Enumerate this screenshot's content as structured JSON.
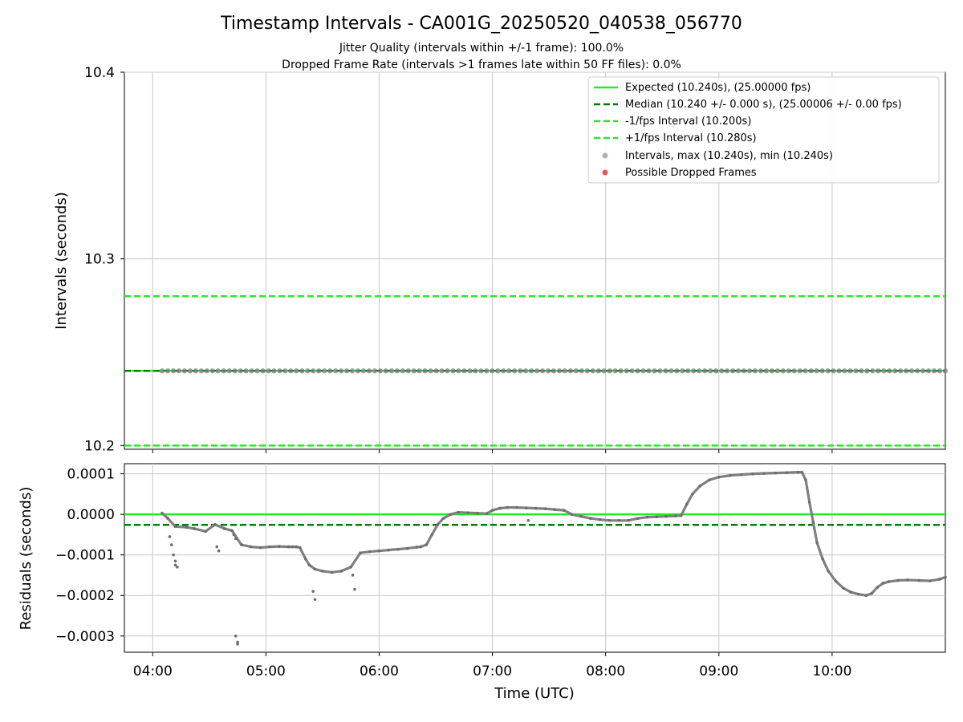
{
  "title": "Timestamp Intervals - CA001G_20250520_040538_056770",
  "subtitle_1": "Jitter Quality (intervals within +/-1 frame): 100.0%",
  "subtitle_2": "Dropped Frame Rate (intervals >1 frames late within 50 FF files): 0.0%",
  "colors": {
    "expected": "#22ee22",
    "median": "#007a00",
    "fps_bounds": "#22ee22",
    "intervals": "#808080",
    "dropped": "#ee5555",
    "grid": "#c8c8c8"
  },
  "chart_data": [
    {
      "type": "scatter",
      "ylabel": "Intervals (seconds)",
      "ylim": [
        10.198,
        10.4
      ],
      "yticks": [
        "10.2",
        "10.3",
        "10.4"
      ],
      "ytick_values": [
        10.2,
        10.3,
        10.4
      ],
      "xlim": [
        "03:45",
        "11:00"
      ],
      "grid": true,
      "legend_position": "top-right",
      "legend": [
        "Expected (10.240s), (25.00000 fps)",
        "Median (10.240 +/- 0.000 s), (25.00006 +/- 0.00 fps)",
        "-1/fps Interval (10.200s)",
        "+1/fps Interval (10.280s)",
        "Intervals, max (10.240s), min (10.240s)",
        "Possible Dropped Frames"
      ],
      "reference_lines": [
        {
          "name": "Expected",
          "y": 10.24,
          "style": "solid"
        },
        {
          "name": "Median",
          "y": 10.24,
          "style": "dashed"
        },
        {
          "name": "-1/fps Interval",
          "y": 10.2,
          "style": "dashed"
        },
        {
          "name": "+1/fps Interval",
          "y": 10.28,
          "style": "dashed"
        }
      ],
      "series": [
        {
          "name": "Intervals",
          "x": [
            "04:05",
            "11:00"
          ],
          "y": [
            10.24,
            10.24
          ]
        }
      ]
    },
    {
      "type": "scatter",
      "xlabel": "Time (UTC)",
      "ylabel": "Residuals (seconds)",
      "ylim": [
        -0.00034,
        0.000125
      ],
      "yticks": [
        "0.0001",
        "0.0000",
        "−0.0001",
        "−0.0002",
        "−0.0003"
      ],
      "ytick_values": [
        0.0001,
        0.0,
        -0.0001,
        -0.0002,
        -0.0003
      ],
      "xticks": [
        "04:00",
        "05:00",
        "06:00",
        "07:00",
        "08:00",
        "09:00",
        "10:00"
      ],
      "xlim": [
        "03:45",
        "11:00"
      ],
      "grid": true,
      "reference_lines": [
        {
          "name": "Expected",
          "y": 0.0,
          "style": "solid"
        },
        {
          "name": "Median",
          "y": -2.6e-05,
          "style": "dashed"
        }
      ],
      "series": [
        {
          "name": "Residuals",
          "x": [
            "04:05",
            "04:08",
            "04:12",
            "04:18",
            "04:22",
            "04:28",
            "04:33",
            "04:38",
            "04:42",
            "04:47",
            "04:52",
            "04:57",
            "05:02",
            "05:07",
            "05:12",
            "05:14",
            "05:16",
            "05:18",
            "05:21",
            "05:23",
            "05:26",
            "05:30",
            "05:35",
            "05:40",
            "05:45",
            "05:50",
            "05:55",
            "06:00",
            "06:05",
            "06:10",
            "06:15",
            "06:20",
            "06:22",
            "06:25",
            "06:28",
            "06:31",
            "06:34",
            "06:38",
            "06:42",
            "06:47",
            "06:52",
            "06:57",
            "07:00",
            "07:04",
            "07:08",
            "07:13",
            "07:18",
            "07:23",
            "07:28",
            "07:33",
            "07:38",
            "07:42",
            "07:47",
            "07:52",
            "07:57",
            "08:02",
            "08:07",
            "08:12",
            "08:17",
            "08:22",
            "08:27",
            "08:32",
            "08:37",
            "08:40",
            "08:43",
            "08:46",
            "08:50",
            "08:55",
            "09:00",
            "09:06",
            "09:12",
            "09:18",
            "09:24",
            "09:30",
            "09:36",
            "09:42",
            "09:44",
            "09:46",
            "09:48",
            "09:50",
            "09:52",
            "09:55",
            "09:58",
            "10:02",
            "10:06",
            "10:10",
            "10:14",
            "10:18",
            "10:21",
            "10:24",
            "10:27",
            "10:30",
            "10:35",
            "10:40",
            "10:46",
            "10:52",
            "10:57",
            "11:00"
          ],
          "y": [
            3e-06,
            -1e-05,
            -3e-05,
            -3.2e-05,
            -3.5e-05,
            -4.2e-05,
            -2.5e-05,
            -3.5e-05,
            -4e-05,
            -7.5e-05,
            -8e-05,
            -8.2e-05,
            -8e-05,
            -7.9e-05,
            -8e-05,
            -8e-05,
            -8e-05,
            -8.2e-05,
            -0.00011,
            -0.000125,
            -0.000135,
            -0.00014,
            -0.000143,
            -0.00014,
            -0.00013,
            -9.5e-05,
            -9.2e-05,
            -9e-05,
            -8.8e-05,
            -8.6e-05,
            -8.4e-05,
            -8.1e-05,
            -8e-05,
            -7.5e-05,
            -5e-05,
            -2.5e-05,
            -1e-05,
            0.0,
            5e-06,
            4e-06,
            3e-06,
            2e-06,
            1e-05,
            1.5e-05,
            1.7e-05,
            1.7e-05,
            1.6e-05,
            1.5e-05,
            1.4e-05,
            1.2e-05,
            1e-05,
            0.0,
            -5e-06,
            -1e-05,
            -1.3e-05,
            -1.5e-05,
            -1.5e-05,
            -1.5e-05,
            -1e-05,
            -7e-06,
            -6e-06,
            -5e-06,
            -4e-06,
            -3e-06,
            2.5e-05,
            5e-05,
            7e-05,
            8.5e-05,
            9.2e-05,
            9.6e-05,
            9.8e-05,
            0.0001,
            0.000101,
            0.000102,
            0.000103,
            0.000104,
            0.000104,
            8.5e-05,
            3e-05,
            -2e-05,
            -7e-05,
            -0.00011,
            -0.00014,
            -0.000165,
            -0.000182,
            -0.000192,
            -0.000197,
            -0.0002,
            -0.000195,
            -0.00018,
            -0.00017,
            -0.000166,
            -0.000163,
            -0.000162,
            -0.000163,
            -0.000164,
            -0.00016,
            -0.000155
          ]
        },
        {
          "name": "Outliers",
          "x": [
            "04:09",
            "04:10",
            "04:11",
            "04:12",
            "04:12",
            "04:13",
            "04:34",
            "04:35",
            "04:43",
            "04:44",
            "04:44",
            "04:45",
            "04:45",
            "05:25",
            "05:26",
            "05:46",
            "05:47",
            "07:19"
          ],
          "y": [
            -5.5e-05,
            -7.5e-05,
            -0.0001,
            -0.000115,
            -0.000125,
            -0.00013,
            -8e-05,
            -9e-05,
            -5e-05,
            -6e-05,
            -0.0003,
            -0.000315,
            -0.00032,
            -0.00019,
            -0.00021,
            -0.00015,
            -0.000185,
            -1.5e-05
          ]
        }
      ]
    }
  ]
}
